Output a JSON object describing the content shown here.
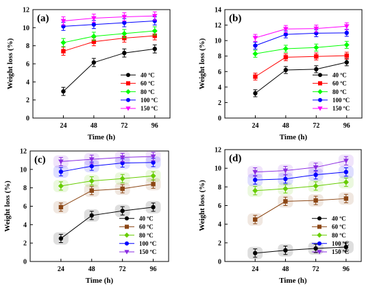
{
  "chart_data": [
    {
      "type": "line",
      "panel_label": "(a)",
      "x": [
        24,
        48,
        72,
        96
      ],
      "xlabel": "Time (h)",
      "ylabel": "Weight loss (%)",
      "ylim": [
        0,
        12
      ],
      "yticks": [
        0,
        2,
        4,
        6,
        8,
        10,
        12
      ],
      "legend_position": "lower-right",
      "shaded_bands": false,
      "series": [
        {
          "name": "40 ºC",
          "color": "#000000",
          "marker": "circle",
          "values": [
            2.95,
            6.15,
            7.2,
            7.65
          ]
        },
        {
          "name": "60 ºC",
          "color": "#ff0000",
          "marker": "square",
          "values": [
            7.4,
            8.45,
            8.85,
            9.1
          ]
        },
        {
          "name": "80 ºC",
          "color": "#00ff00",
          "marker": "diamond",
          "values": [
            8.35,
            9.05,
            9.35,
            9.65
          ]
        },
        {
          "name": "100 ºC",
          "color": "#0000ff",
          "marker": "circle",
          "values": [
            10.15,
            10.35,
            10.55,
            10.75
          ]
        },
        {
          "name": "150 ºC",
          "color": "#ff00ff",
          "marker": "triangle-down",
          "values": [
            10.75,
            11.05,
            11.2,
            11.3
          ]
        }
      ]
    },
    {
      "type": "line",
      "panel_label": "(b)",
      "x": [
        24,
        48,
        72,
        96
      ],
      "xlabel": "Time (h)",
      "ylabel": "Weight loss (%)",
      "ylim": [
        0,
        14
      ],
      "yticks": [
        0,
        2,
        4,
        6,
        8,
        10,
        12,
        14
      ],
      "legend_position": "lower-right",
      "shaded_bands": false,
      "series": [
        {
          "name": "40 ºC",
          "color": "#000000",
          "marker": "circle",
          "values": [
            3.2,
            6.2,
            6.3,
            7.2
          ]
        },
        {
          "name": "60 ºC",
          "color": "#ff0000",
          "marker": "square",
          "values": [
            5.35,
            7.85,
            7.95,
            8.05
          ]
        },
        {
          "name": "80 ºC",
          "color": "#00ff00",
          "marker": "diamond",
          "values": [
            8.3,
            8.95,
            9.1,
            9.45
          ]
        },
        {
          "name": "100 ºC",
          "color": "#0000ff",
          "marker": "circle",
          "values": [
            9.35,
            10.8,
            10.95,
            11.0
          ]
        },
        {
          "name": "150 ºC",
          "color": "#ff00ff",
          "marker": "triangle-down",
          "values": [
            10.35,
            11.5,
            11.55,
            11.85
          ]
        }
      ]
    },
    {
      "type": "line",
      "panel_label": "(c)",
      "x": [
        24,
        48,
        72,
        96
      ],
      "xlabel": "Time (h)",
      "ylabel": "Weight loss (%)",
      "ylim": [
        0,
        12
      ],
      "yticks": [
        0,
        2,
        4,
        6,
        8,
        10,
        12
      ],
      "legend_position": "lower-right",
      "shaded_bands": true,
      "series": [
        {
          "name": "40 ºC",
          "color": "#000000",
          "marker": "circle",
          "values": [
            2.5,
            5.0,
            5.5,
            5.9
          ]
        },
        {
          "name": "60 ºC",
          "color": "#8b4513",
          "marker": "square",
          "values": [
            5.9,
            7.7,
            7.9,
            8.4
          ]
        },
        {
          "name": "80 ºC",
          "color": "#66cc00",
          "marker": "diamond",
          "values": [
            8.2,
            8.75,
            9.0,
            9.3
          ]
        },
        {
          "name": "100 ºC",
          "color": "#0000ff",
          "marker": "circle",
          "values": [
            9.75,
            10.35,
            10.7,
            10.75
          ]
        },
        {
          "name": "150 ºC",
          "color": "#8a2be2",
          "marker": "triangle-down",
          "values": [
            10.85,
            11.1,
            11.3,
            11.4
          ]
        }
      ]
    },
    {
      "type": "line",
      "panel_label": "(d)",
      "x": [
        24,
        48,
        72,
        96
      ],
      "xlabel": "Time (h)",
      "ylabel": "Weight loss (%)",
      "ylim": [
        0,
        12
      ],
      "yticks": [
        0,
        2,
        4,
        6,
        8,
        10,
        12
      ],
      "legend_position": "lower-right",
      "shaded_bands": true,
      "series": [
        {
          "name": "40 ºC",
          "color": "#000000",
          "marker": "circle",
          "values": [
            0.9,
            1.2,
            1.4,
            1.55
          ]
        },
        {
          "name": "60 ºC",
          "color": "#8b4513",
          "marker": "square",
          "values": [
            4.5,
            6.45,
            6.55,
            6.75
          ]
        },
        {
          "name": "80 ºC",
          "color": "#66cc00",
          "marker": "diamond",
          "values": [
            7.6,
            7.8,
            8.1,
            8.5
          ]
        },
        {
          "name": "100 ºC",
          "color": "#0000ff",
          "marker": "circle",
          "values": [
            8.75,
            8.85,
            9.3,
            9.6
          ]
        },
        {
          "name": "150 ºC",
          "color": "#8a2be2",
          "marker": "triangle-down",
          "values": [
            9.6,
            9.75,
            10.1,
            10.8
          ]
        }
      ]
    }
  ]
}
